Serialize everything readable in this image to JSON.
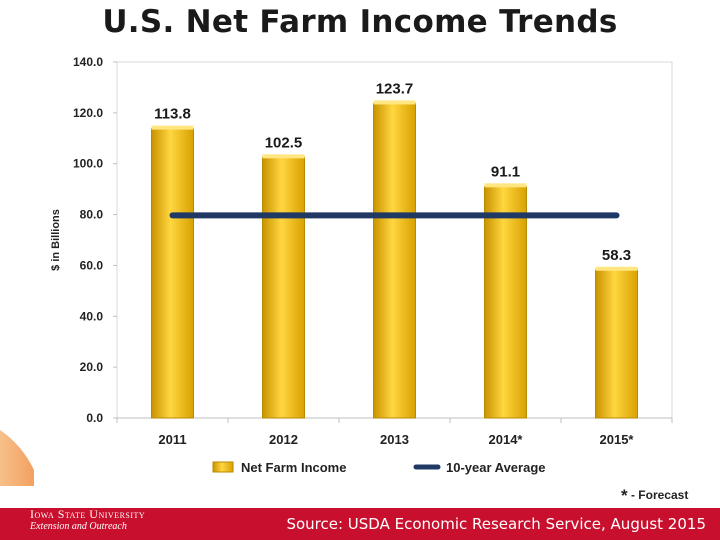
{
  "title": "U.S. Net Farm Income Trends",
  "chart_data": {
    "type": "bar",
    "title": "U.S. Net Farm Income Trends",
    "ylabel": "$ in Billions",
    "xlabel": "",
    "categories": [
      "2011",
      "2012",
      "2013",
      "2014*",
      "2015*"
    ],
    "series": [
      {
        "name": "Net Farm Income",
        "type": "bar",
        "values": [
          113.8,
          102.5,
          123.7,
          91.1,
          58.3
        ],
        "color": "#f5b800"
      },
      {
        "name": "10-year Average",
        "type": "line",
        "values": [
          79.7,
          79.7,
          79.7,
          79.7,
          79.7
        ],
        "color": "#1f3864"
      }
    ],
    "data_labels": [
      "113.8",
      "102.5",
      "123.7",
      "91.1",
      "58.3"
    ],
    "ylim": [
      0,
      140
    ],
    "yticks": [
      "0.0",
      "20.0",
      "40.0",
      "60.0",
      "80.0",
      "100.0",
      "120.0",
      "140.0"
    ],
    "grid": false,
    "legend": "bottom"
  },
  "note": {
    "star": "*",
    "text": " - Forecast"
  },
  "footer": {
    "logo_line1": "Iowa State University",
    "logo_line2": "Extension and Outreach",
    "source": "Source:  USDA Economic Research Service, August 2015"
  },
  "colors": {
    "bar": "#f5b800",
    "bar_edge": "#b88a00",
    "line": "#1f3864",
    "footer": "#c8102e"
  }
}
